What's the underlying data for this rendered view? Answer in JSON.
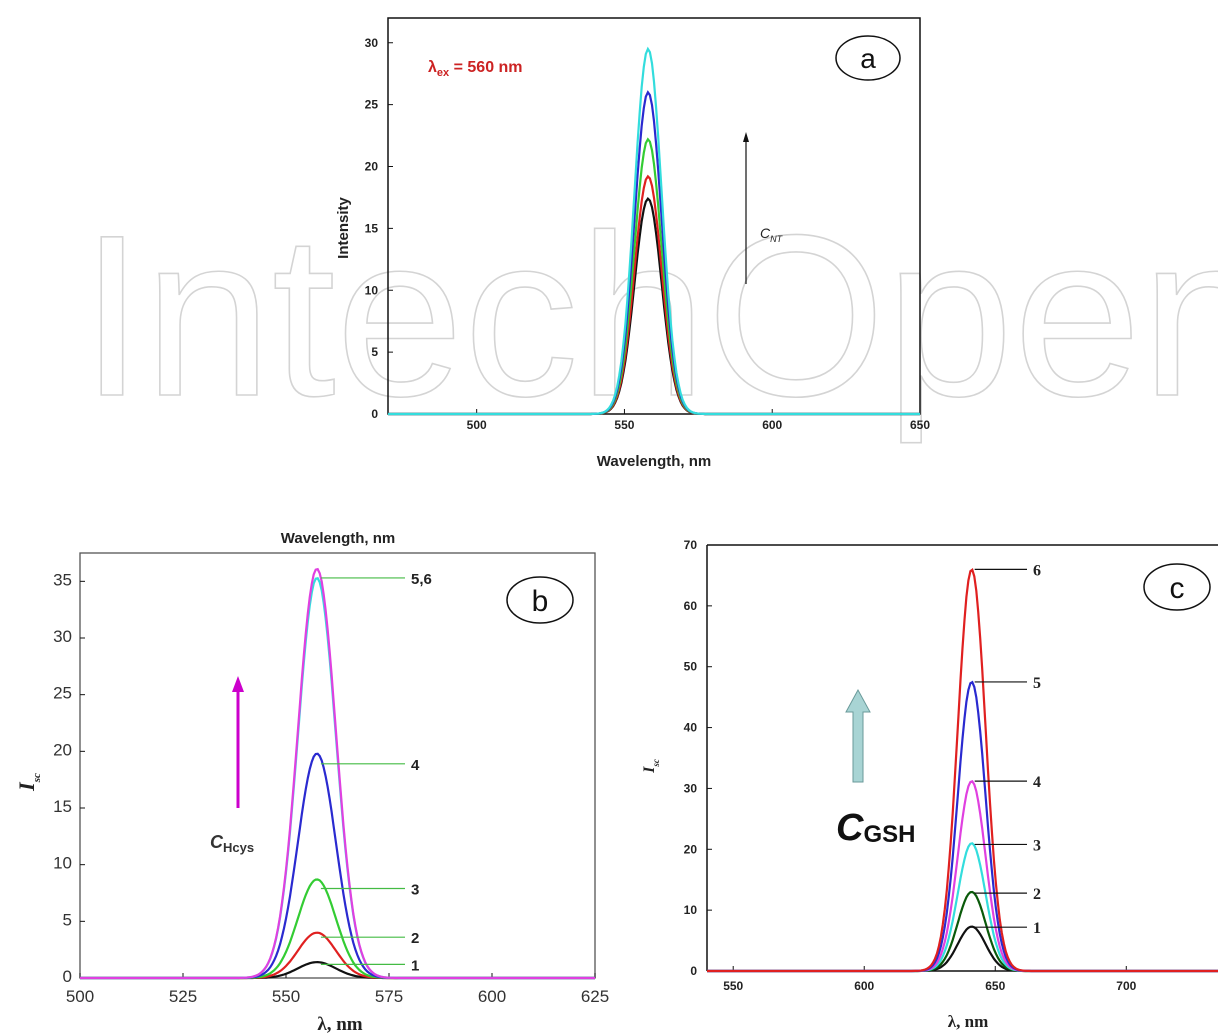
{
  "watermark": "IntechOpen",
  "colors": {
    "black": "#111111",
    "red": "#e02020",
    "green": "#33cc33",
    "blue": "#2a2ad0",
    "cyan": "#33dddd",
    "magenta": "#e040e0",
    "darkgreen": "#0a5a0a",
    "annot_red": "#cc2222",
    "arrow_magenta": "#cc00cc",
    "arrow_teal": "#a8d4d4"
  },
  "chart_data": [
    {
      "id": "a",
      "type": "line",
      "panel_label": "a",
      "xlabel": "Wavelength, nm",
      "ylabel": "Intensity",
      "xlim": [
        470,
        650
      ],
      "ylim": [
        0,
        32
      ],
      "xticks": [
        500,
        550,
        600,
        650
      ],
      "yticks": [
        0,
        5,
        10,
        15,
        20,
        25,
        30
      ],
      "annotation_lambda": "λ",
      "annotation_sub": "ex",
      "annotation_rest": " = 560 nm",
      "arrow_label": "C",
      "arrow_label_sub": "NT",
      "peak_center": 558,
      "series": [
        {
          "color": "#111111",
          "peak": 17.4,
          "sigma": 4.6
        },
        {
          "color": "#e02020",
          "peak": 19.2,
          "sigma": 4.6
        },
        {
          "color": "#33cc33",
          "peak": 22.2,
          "sigma": 4.6
        },
        {
          "color": "#2a2ad0",
          "peak": 26.0,
          "sigma": 4.6
        },
        {
          "color": "#33dddd",
          "peak": 29.5,
          "sigma": 4.6
        }
      ]
    },
    {
      "id": "b",
      "type": "line",
      "panel_label": "b",
      "top_label": "Wavelength, nm",
      "xlabel": "λ, nm",
      "ylabel": "I",
      "ylabel_sub": "sc",
      "xlim": [
        500,
        625
      ],
      "ylim": [
        0,
        37.5
      ],
      "xticks": [
        500,
        525,
        550,
        575,
        600,
        625
      ],
      "yticks": [
        0,
        5,
        10,
        15,
        20,
        25,
        30,
        35
      ],
      "arrow_label": "C",
      "arrow_label_sub": "Hcys",
      "peak_center": 557.5,
      "series": [
        {
          "name": "1",
          "color": "#111111",
          "peak": 1.4,
          "sigma": 4.6
        },
        {
          "name": "2",
          "color": "#e02020",
          "peak": 4.0,
          "sigma": 4.6
        },
        {
          "name": "3",
          "color": "#33cc33",
          "peak": 8.7,
          "sigma": 4.6
        },
        {
          "name": "4",
          "color": "#2a2ad0",
          "peak": 19.8,
          "sigma": 4.6
        },
        {
          "name": "5",
          "color": "#33dddd",
          "peak": 35.3,
          "sigma": 4.6
        },
        {
          "name": "6",
          "color": "#e040e0",
          "peak": 36.1,
          "sigma": 4.6
        }
      ],
      "leader_labels": [
        {
          "text": "5,6",
          "y": 35.3
        },
        {
          "text": "4",
          "y": 18.9
        },
        {
          "text": "3",
          "y": 7.9
        },
        {
          "text": "2",
          "y": 3.6
        },
        {
          "text": "1",
          "y": 1.2
        }
      ]
    },
    {
      "id": "c",
      "type": "line",
      "panel_label": "c",
      "xlabel": "λ, nm",
      "ylabel": "I",
      "ylabel_sub": "sc",
      "xlim": [
        540,
        735
      ],
      "ylim": [
        0,
        70
      ],
      "xticks": [
        550,
        600,
        650,
        700
      ],
      "yticks": [
        0,
        10,
        20,
        30,
        40,
        50,
        60,
        70
      ],
      "arrow_label": "C",
      "arrow_label_sub": "GSH",
      "peak_center": 641,
      "series": [
        {
          "name": "1",
          "color": "#111111",
          "peak": 7.3,
          "sigma": 5.3
        },
        {
          "name": "2",
          "color": "#0a5a0a",
          "peak": 13.0,
          "sigma": 5.3
        },
        {
          "name": "3",
          "color": "#33dddd",
          "peak": 21.0,
          "sigma": 5.3
        },
        {
          "name": "4",
          "color": "#e040e0",
          "peak": 31.2,
          "sigma": 5.3
        },
        {
          "name": "5",
          "color": "#2a2ad0",
          "peak": 47.5,
          "sigma": 5.3
        },
        {
          "name": "6",
          "color": "#e02020",
          "peak": 66.0,
          "sigma": 5.3
        }
      ],
      "leader_labels": [
        {
          "text": "6",
          "y": 66.0
        },
        {
          "text": "5",
          "y": 47.5
        },
        {
          "text": "4",
          "y": 31.2
        },
        {
          "text": "3",
          "y": 20.8
        },
        {
          "text": "2",
          "y": 12.8
        },
        {
          "text": "1",
          "y": 7.2
        }
      ]
    }
  ]
}
